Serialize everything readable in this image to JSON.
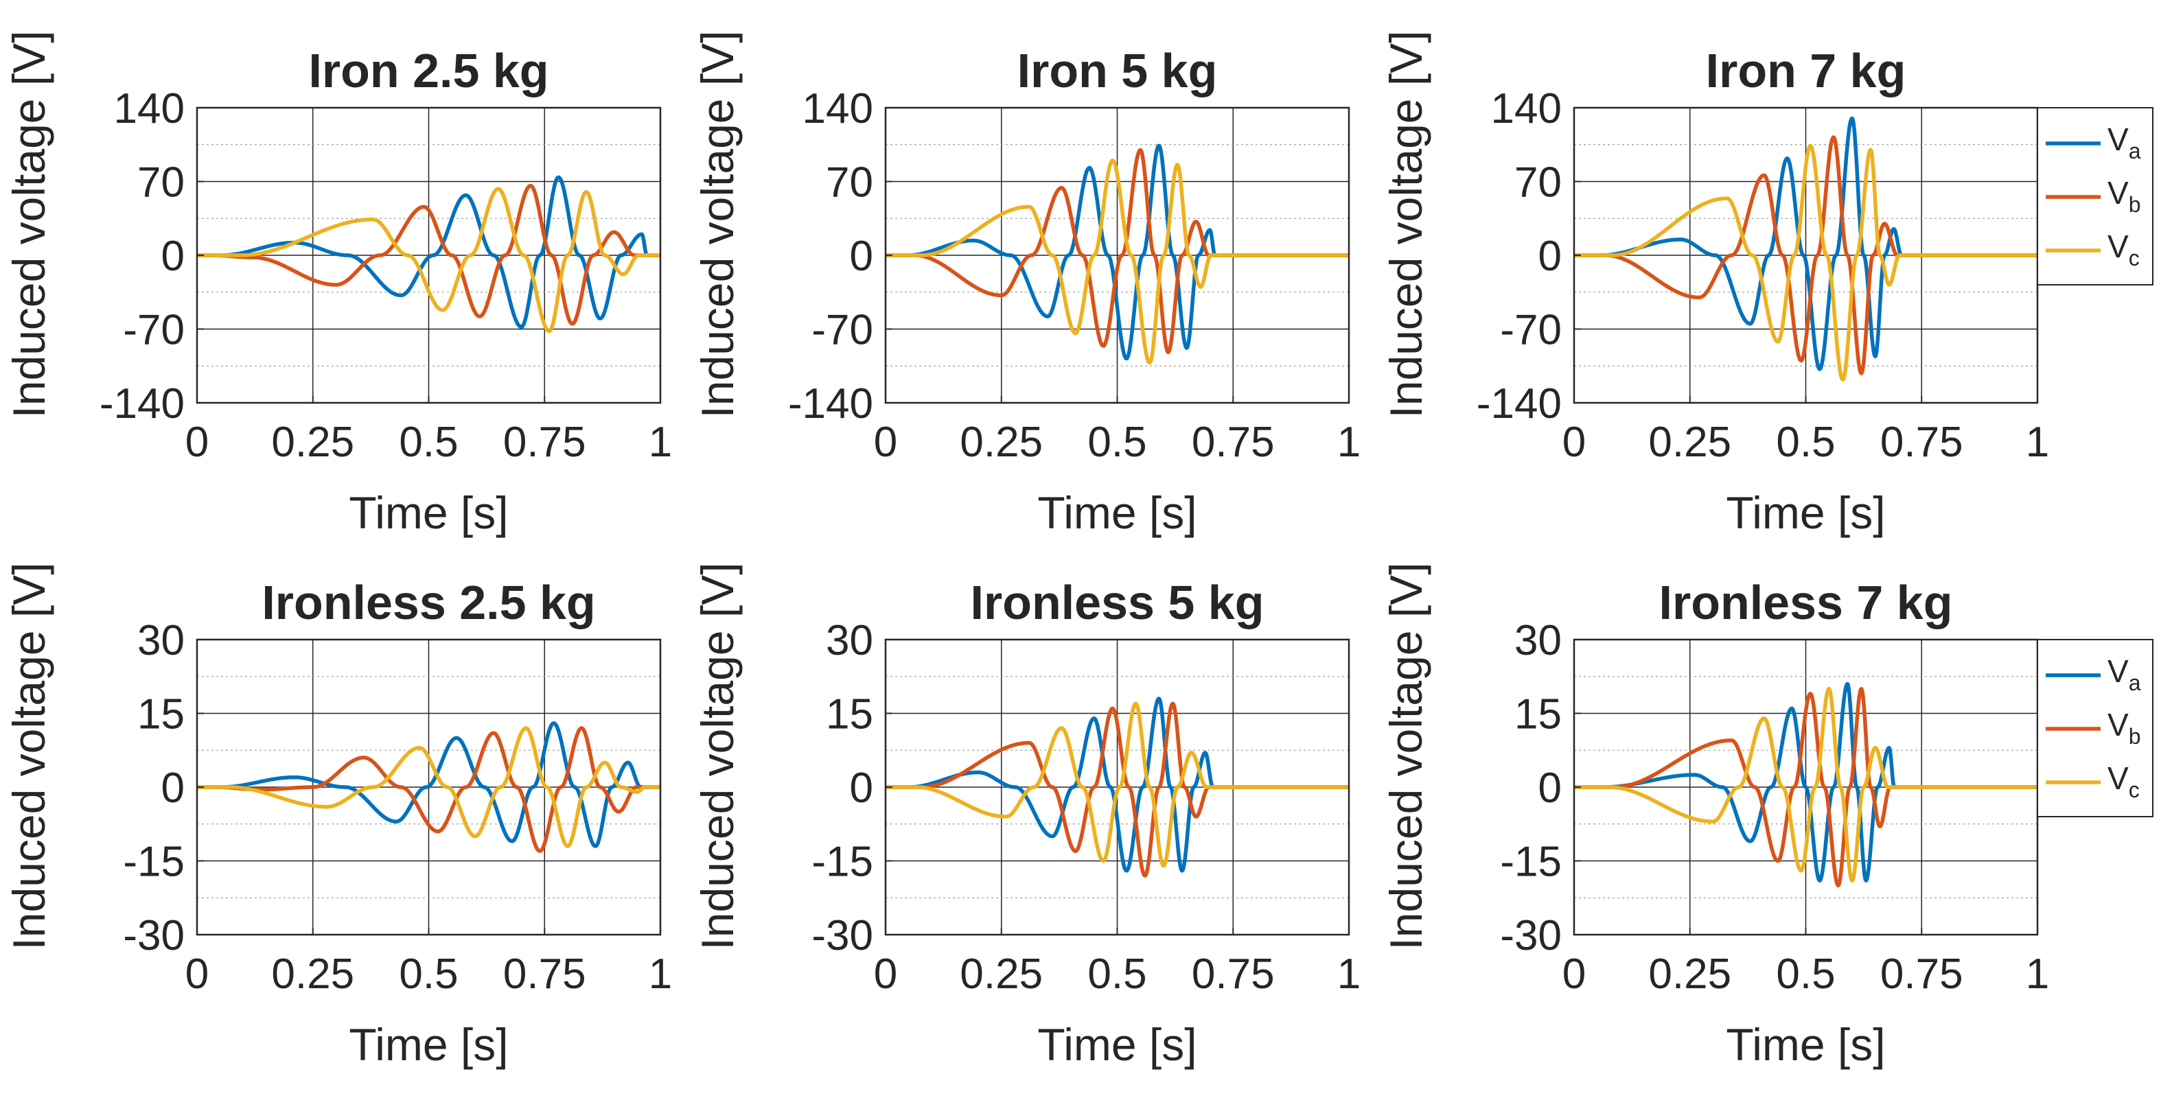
{
  "figure": {
    "legend_labels": [
      {
        "base": "V",
        "sub": "a"
      },
      {
        "base": "V",
        "sub": "b"
      },
      {
        "base": "V",
        "sub": "c"
      }
    ]
  },
  "colors": {
    "Va": "#0072BD",
    "Vb": "#D95319",
    "Vc": "#EDB120",
    "axis": "#262626",
    "grid_major": "#262626",
    "grid_minor": "#8c8c8c"
  },
  "chart_data": [
    {
      "type": "line",
      "title": "Iron 2.5 kg",
      "xlabel": "Time [s]",
      "ylabel": "Induced voltage [V]",
      "xlim": [
        0,
        1
      ],
      "ylim": [
        -140,
        140
      ],
      "xticks": [
        0,
        0.25,
        0.5,
        0.75,
        1
      ],
      "xtick_labels": [
        "0",
        "0.25",
        "0.5",
        "0.75",
        "1"
      ],
      "yticks": [
        -140,
        -70,
        0,
        70,
        140
      ],
      "ytick_labels": [
        "-140",
        "-70",
        "0",
        "70",
        "140"
      ],
      "grid": true,
      "legend": false,
      "end_time": 0.98,
      "series": [
        {
          "name": "Va",
          "points": [
            [
              0.21,
              12
            ],
            [
              0.44,
              -38
            ],
            [
              0.58,
              57
            ],
            [
              0.7,
              -68
            ],
            [
              0.78,
              74
            ],
            [
              0.87,
              -60
            ],
            [
              0.96,
              20
            ]
          ]
        },
        {
          "name": "Vb",
          "points": [
            [
              0.12,
              -2
            ],
            [
              0.3,
              -28
            ],
            [
              0.49,
              46
            ],
            [
              0.61,
              -58
            ],
            [
              0.72,
              66
            ],
            [
              0.81,
              -65
            ],
            [
              0.9,
              22
            ]
          ]
        },
        {
          "name": "Vc",
          "points": [
            [
              0.38,
              34
            ],
            [
              0.53,
              -52
            ],
            [
              0.65,
              63
            ],
            [
              0.76,
              -72
            ],
            [
              0.84,
              60
            ],
            [
              0.92,
              -18
            ]
          ]
        }
      ]
    },
    {
      "type": "line",
      "title": "Iron 5 kg",
      "xlabel": "Time [s]",
      "ylabel": "Induced voltage [V]",
      "xlim": [
        0,
        1
      ],
      "ylim": [
        -140,
        140
      ],
      "xticks": [
        0,
        0.25,
        0.5,
        0.75,
        1
      ],
      "xtick_labels": [
        "0",
        "0.25",
        "0.5",
        "0.75",
        "1"
      ],
      "yticks": [
        -140,
        -70,
        0,
        70,
        140
      ],
      "ytick_labels": [
        "-140",
        "-70",
        "0",
        "70",
        "140"
      ],
      "grid": true,
      "legend": false,
      "end_time": 0.72,
      "series": [
        {
          "name": "Va",
          "points": [
            [
              0.19,
              14
            ],
            [
              0.35,
              -58
            ],
            [
              0.44,
              83
            ],
            [
              0.52,
              -98
            ],
            [
              0.59,
              104
            ],
            [
              0.65,
              -88
            ],
            [
              0.7,
              24
            ]
          ]
        },
        {
          "name": "Vb",
          "points": [
            [
              0.25,
              -38
            ],
            [
              0.38,
              64
            ],
            [
              0.47,
              -86
            ],
            [
              0.55,
              100
            ],
            [
              0.61,
              -92
            ],
            [
              0.67,
              32
            ]
          ]
        },
        {
          "name": "Vc",
          "points": [
            [
              0.31,
              46
            ],
            [
              0.41,
              -74
            ],
            [
              0.49,
              90
            ],
            [
              0.57,
              -102
            ],
            [
              0.63,
              86
            ],
            [
              0.68,
              -30
            ]
          ]
        }
      ]
    },
    {
      "type": "line",
      "title": "Iron 7 kg",
      "xlabel": "Time [s]",
      "ylabel": "Induced voltage [V]",
      "xlim": [
        0,
        1
      ],
      "ylim": [
        -140,
        140
      ],
      "xticks": [
        0,
        0.25,
        0.5,
        0.75,
        1
      ],
      "xtick_labels": [
        "0",
        "0.25",
        "0.5",
        "0.75",
        "1"
      ],
      "yticks": [
        -140,
        -70,
        0,
        70,
        140
      ],
      "ytick_labels": [
        "-140",
        "-70",
        "0",
        "70",
        "140"
      ],
      "grid": true,
      "legend": true,
      "legend_position": "right",
      "end_time": 0.72,
      "series": [
        {
          "name": "Va",
          "points": [
            [
              0.23,
              15
            ],
            [
              0.38,
              -65
            ],
            [
              0.46,
              92
            ],
            [
              0.53,
              -108
            ],
            [
              0.6,
              130
            ],
            [
              0.65,
              -96
            ],
            [
              0.69,
              25
            ]
          ]
        },
        {
          "name": "Vb",
          "points": [
            [
              0.27,
              -40
            ],
            [
              0.41,
              76
            ],
            [
              0.49,
              -100
            ],
            [
              0.56,
              112
            ],
            [
              0.62,
              -112
            ],
            [
              0.67,
              30
            ]
          ]
        },
        {
          "name": "Vc",
          "points": [
            [
              0.33,
              54
            ],
            [
              0.44,
              -82
            ],
            [
              0.51,
              104
            ],
            [
              0.58,
              -118
            ],
            [
              0.64,
              100
            ],
            [
              0.68,
              -28
            ]
          ]
        }
      ]
    },
    {
      "type": "line",
      "title": "Ironless 2.5 kg",
      "xlabel": "Time [s]",
      "ylabel": "Induced voltage [V]",
      "xlim": [
        0,
        1
      ],
      "ylim": [
        -30,
        30
      ],
      "xticks": [
        0,
        0.25,
        0.5,
        0.75,
        1
      ],
      "xtick_labels": [
        "0",
        "0.25",
        "0.5",
        "0.75",
        "1"
      ],
      "yticks": [
        -30,
        -15,
        0,
        15,
        30
      ],
      "ytick_labels": [
        "-30",
        "-15",
        "0",
        "15",
        "30"
      ],
      "grid": true,
      "legend": false,
      "end_time": 0.98,
      "series": [
        {
          "name": "Va",
          "points": [
            [
              0.21,
              2
            ],
            [
              0.43,
              -7
            ],
            [
              0.56,
              10
            ],
            [
              0.68,
              -11
            ],
            [
              0.77,
              13
            ],
            [
              0.86,
              -12
            ],
            [
              0.93,
              5
            ]
          ]
        },
        {
          "name": "Vb",
          "points": [
            [
              0.14,
              -0.5
            ],
            [
              0.36,
              6
            ],
            [
              0.52,
              -9
            ],
            [
              0.64,
              11
            ],
            [
              0.74,
              -13
            ],
            [
              0.83,
              12
            ],
            [
              0.91,
              -5
            ]
          ]
        },
        {
          "name": "Vc",
          "points": [
            [
              0.28,
              -4
            ],
            [
              0.48,
              8
            ],
            [
              0.6,
              -10
            ],
            [
              0.71,
              12
            ],
            [
              0.8,
              -12
            ],
            [
              0.88,
              5
            ],
            [
              0.95,
              -1
            ]
          ]
        }
      ]
    },
    {
      "type": "line",
      "title": "Ironless 5 kg",
      "xlabel": "Time [s]",
      "ylabel": "Induced voltage [V]",
      "xlim": [
        0,
        1
      ],
      "ylim": [
        -30,
        30
      ],
      "xticks": [
        0,
        0.25,
        0.5,
        0.75,
        1
      ],
      "xtick_labels": [
        "0",
        "0.25",
        "0.5",
        "0.75",
        "1"
      ],
      "yticks": [
        -30,
        -15,
        0,
        15,
        30
      ],
      "ytick_labels": [
        "-30",
        "-15",
        "0",
        "15",
        "30"
      ],
      "grid": true,
      "legend": false,
      "end_time": 0.72,
      "series": [
        {
          "name": "Va",
          "points": [
            [
              0.2,
              3
            ],
            [
              0.36,
              -10
            ],
            [
              0.45,
              14
            ],
            [
              0.52,
              -17
            ],
            [
              0.59,
              18
            ],
            [
              0.64,
              -17
            ],
            [
              0.69,
              7
            ]
          ]
        },
        {
          "name": "Vb",
          "points": [
            [
              0.31,
              9
            ],
            [
              0.41,
              -13
            ],
            [
              0.49,
              16
            ],
            [
              0.56,
              -18
            ],
            [
              0.62,
              17
            ],
            [
              0.67,
              -6
            ]
          ]
        },
        {
          "name": "Vc",
          "points": [
            [
              0.26,
              -6
            ],
            [
              0.38,
              12
            ],
            [
              0.47,
              -15
            ],
            [
              0.54,
              17
            ],
            [
              0.6,
              -16
            ],
            [
              0.66,
              7
            ]
          ]
        }
      ]
    },
    {
      "type": "line",
      "title": "Ironless 7 kg",
      "xlabel": "Time [s]",
      "ylabel": "Induced voltage [V]",
      "xlim": [
        0,
        1
      ],
      "ylim": [
        -30,
        30
      ],
      "xticks": [
        0,
        0.25,
        0.5,
        0.75,
        1
      ],
      "xtick_labels": [
        "0",
        "0.25",
        "0.5",
        "0.75",
        "1"
      ],
      "yticks": [
        -30,
        -15,
        0,
        15,
        30
      ],
      "ytick_labels": [
        "-30",
        "-15",
        "0",
        "15",
        "30"
      ],
      "grid": true,
      "legend": true,
      "legend_position": "right",
      "end_time": 0.7,
      "series": [
        {
          "name": "Va",
          "points": [
            [
              0.26,
              2.5
            ],
            [
              0.38,
              -11
            ],
            [
              0.47,
              16
            ],
            [
              0.53,
              -19
            ],
            [
              0.59,
              21
            ],
            [
              0.63,
              -19
            ],
            [
              0.68,
              8
            ]
          ]
        },
        {
          "name": "Vb",
          "points": [
            [
              0.34,
              9.5
            ],
            [
              0.44,
              -15
            ],
            [
              0.51,
              19
            ],
            [
              0.57,
              -20
            ],
            [
              0.62,
              20
            ],
            [
              0.66,
              -8
            ]
          ]
        },
        {
          "name": "Vc",
          "points": [
            [
              0.3,
              -7
            ],
            [
              0.41,
              14
            ],
            [
              0.49,
              -17
            ],
            [
              0.55,
              20
            ],
            [
              0.6,
              -19
            ],
            [
              0.65,
              8
            ]
          ]
        }
      ]
    }
  ]
}
